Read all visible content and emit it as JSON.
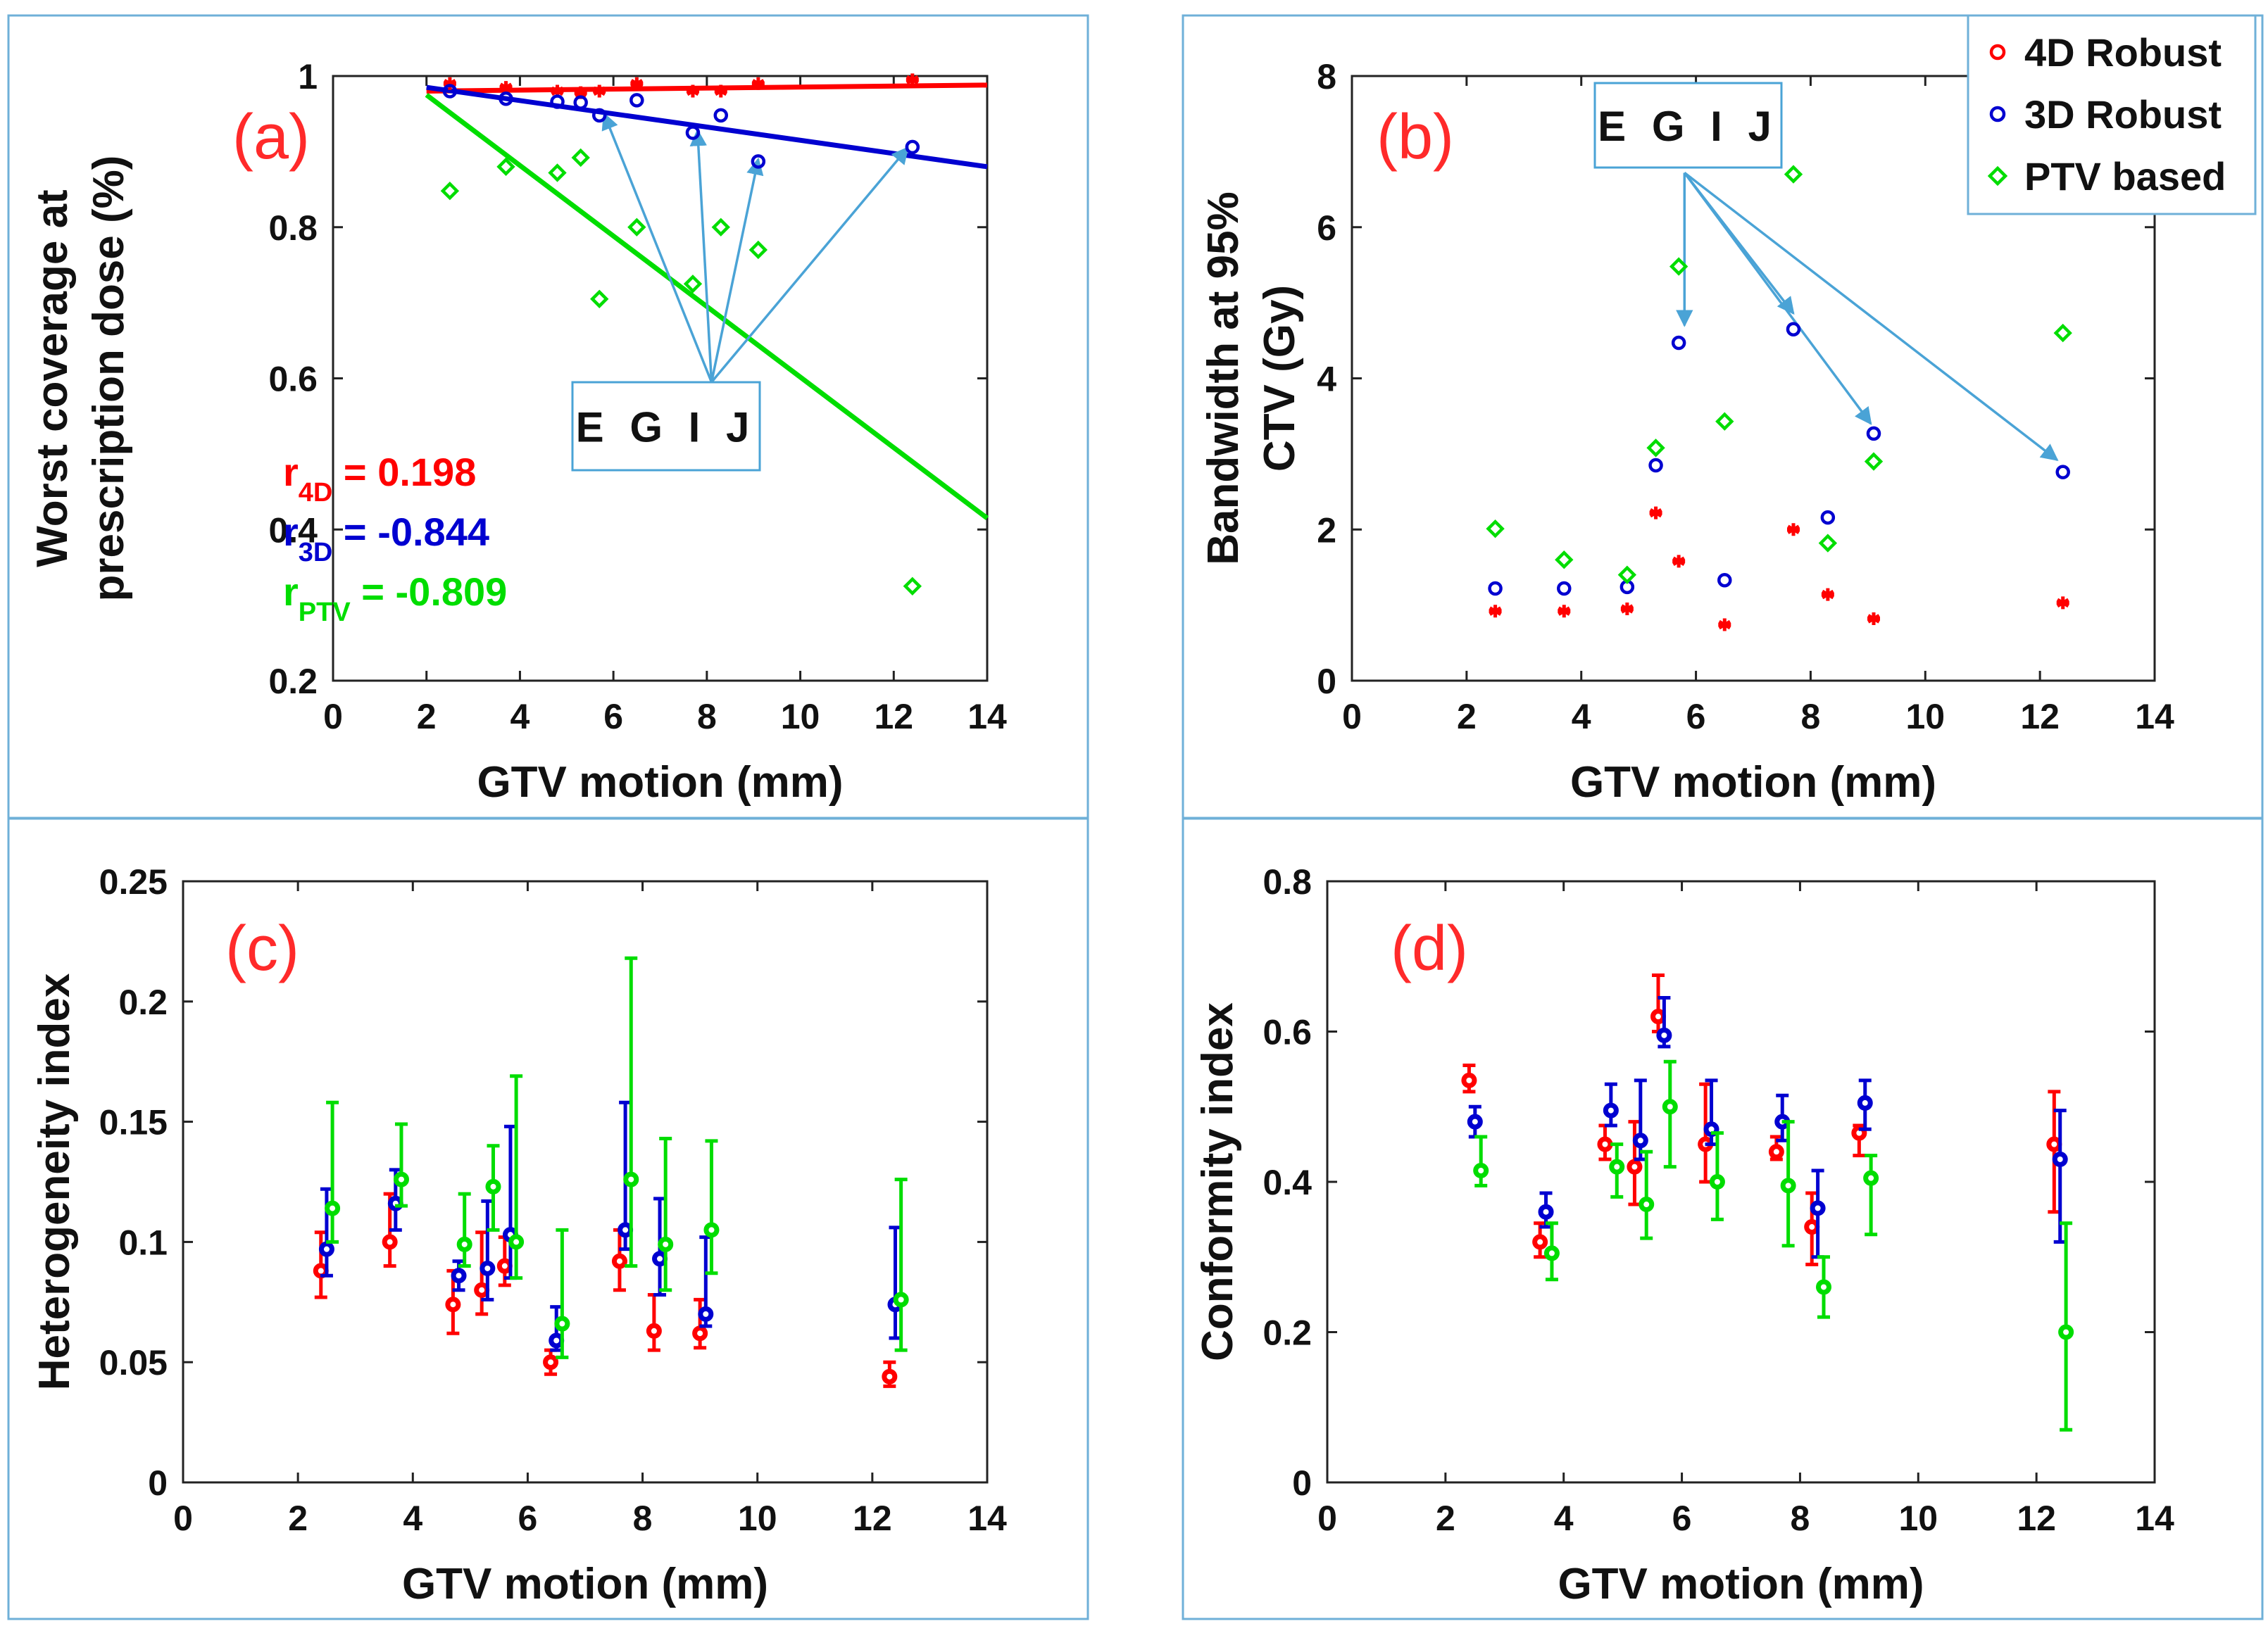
{
  "colors": {
    "4D Robust": "#ff0000",
    "3D Robust": "#0000d0",
    "PTV based": "#00dd00",
    "arrow": "#4aa3d6",
    "panel_border": "#6fb0d8",
    "panel_label": "#ff2a2a"
  },
  "chart_data": [
    {
      "id": "a",
      "panel_label": "(a)",
      "type": "scatter",
      "xlabel": "GTV motion (mm)",
      "ylabel_lines": [
        "Worst coverage at",
        "prescription dose (%)"
      ],
      "xlim": [
        0,
        14
      ],
      "ylim": [
        0.2,
        1
      ],
      "xticks": [
        0,
        2,
        4,
        6,
        8,
        10,
        12,
        14
      ],
      "yticks": [
        0.2,
        0.4,
        0.6,
        0.8,
        1
      ],
      "yticklabels": [
        "0.2",
        "0.4",
        "0.6",
        "0.8",
        "1"
      ],
      "series": [
        {
          "name": "4D Robust",
          "marker": "star",
          "x": [
            2.5,
            3.7,
            4.8,
            5.3,
            5.7,
            6.5,
            7.7,
            8.3,
            9.1,
            12.4
          ],
          "y": [
            0.99,
            0.985,
            0.98,
            0.978,
            0.98,
            0.99,
            0.98,
            0.98,
            0.99,
            0.995
          ]
        },
        {
          "name": "3D Robust",
          "marker": "circle",
          "x": [
            2.5,
            3.7,
            4.8,
            5.3,
            5.7,
            6.5,
            7.7,
            8.3,
            9.1,
            12.4
          ],
          "y": [
            0.98,
            0.97,
            0.966,
            0.965,
            0.948,
            0.968,
            0.925,
            0.948,
            0.887,
            0.906
          ]
        },
        {
          "name": "PTV based",
          "marker": "diamond",
          "x": [
            2.5,
            3.7,
            4.8,
            5.3,
            5.7,
            6.5,
            7.7,
            8.3,
            9.1,
            12.4
          ],
          "y": [
            0.848,
            0.88,
            0.872,
            0.892,
            0.705,
            0.8,
            0.725,
            0.8,
            0.77,
            0.325
          ]
        }
      ],
      "fit_lines": [
        {
          "series": "4D Robust",
          "x": [
            2,
            14
          ],
          "y": [
            0.98,
            0.988
          ]
        },
        {
          "series": "3D Robust",
          "x": [
            2,
            14
          ],
          "y": [
            0.985,
            0.88
          ]
        },
        {
          "series": "PTV based",
          "x": [
            2,
            14
          ],
          "y": [
            0.975,
            0.415
          ]
        }
      ],
      "correlations": [
        {
          "prefix": "r",
          "sub": "4D",
          "value": " = 0.198",
          "series": "4D Robust"
        },
        {
          "prefix": "r",
          "sub": "3D",
          "value": " = -0.844",
          "series": "3D Robust"
        },
        {
          "prefix": "r",
          "sub": "PTV",
          "value": " = -0.809",
          "series": "PTV based"
        }
      ],
      "callout": {
        "text": "E G I  J",
        "origin": [
          8.1,
          0.595
        ],
        "targets": [
          [
            5.8,
            0.95
          ],
          [
            7.8,
            0.928
          ],
          [
            9.1,
            0.89
          ],
          [
            12.3,
            0.905
          ]
        ]
      }
    },
    {
      "id": "b",
      "panel_label": "(b)",
      "type": "scatter",
      "xlabel": "GTV motion (mm)",
      "ylabel_lines": [
        "Bandwidth at 95%",
        "CTV (Gy)"
      ],
      "xlim": [
        0,
        14
      ],
      "ylim": [
        0,
        8
      ],
      "xticks": [
        0,
        2,
        4,
        6,
        8,
        10,
        12,
        14
      ],
      "yticks": [
        0,
        2,
        4,
        6,
        8
      ],
      "yticklabels": [
        "0",
        "2",
        "4",
        "6",
        "8"
      ],
      "series": [
        {
          "name": "4D Robust",
          "marker": "star",
          "x": [
            2.5,
            3.7,
            4.8,
            5.3,
            5.7,
            6.5,
            7.7,
            8.3,
            9.1,
            12.4
          ],
          "y": [
            0.92,
            0.92,
            0.95,
            2.22,
            1.58,
            0.74,
            2.0,
            1.14,
            0.82,
            1.03
          ]
        },
        {
          "name": "3D Robust",
          "marker": "circle",
          "x": [
            2.5,
            3.7,
            4.8,
            5.3,
            5.7,
            6.5,
            7.7,
            8.3,
            9.1,
            12.4
          ],
          "y": [
            1.22,
            1.22,
            1.24,
            2.85,
            4.47,
            1.33,
            4.65,
            2.16,
            3.27,
            2.76
          ]
        },
        {
          "name": "PTV based",
          "marker": "diamond",
          "x": [
            2.5,
            3.7,
            4.8,
            5.3,
            5.7,
            6.5,
            7.7,
            8.3,
            9.1,
            12.4
          ],
          "y": [
            2.01,
            1.6,
            1.4,
            3.08,
            5.48,
            3.43,
            6.7,
            1.82,
            2.9,
            4.6
          ]
        }
      ],
      "callout": {
        "text": "E G I  J",
        "origin": [
          5.8,
          6.72
        ],
        "targets": [
          [
            5.8,
            4.7
          ],
          [
            7.7,
            4.86
          ],
          [
            9.05,
            3.4
          ],
          [
            12.3,
            2.92
          ]
        ]
      },
      "legend": {
        "position": "top-right",
        "entries": [
          "4D Robust",
          "3D Robust",
          "PTV based"
        ]
      }
    },
    {
      "id": "c",
      "panel_label": "(c)",
      "type": "errorbar",
      "xlabel": "GTV motion (mm)",
      "ylabel_lines": [
        "Heterogeneity index"
      ],
      "xlim": [
        0,
        14
      ],
      "ylim": [
        0,
        0.25
      ],
      "xticks": [
        0,
        2,
        4,
        6,
        8,
        10,
        12,
        14
      ],
      "yticks": [
        0,
        0.05,
        0.1,
        0.15,
        0.2,
        0.25
      ],
      "yticklabels": [
        "0",
        "0.05",
        "0.1",
        "0.15",
        "0.2",
        "0.25"
      ],
      "series": [
        {
          "name": "4D Robust",
          "x": [
            2.4,
            3.6,
            4.7,
            5.2,
            5.6,
            6.4,
            7.6,
            8.2,
            9.0,
            12.3
          ],
          "y": [
            0.088,
            0.1,
            0.074,
            0.08,
            0.09,
            0.05,
            0.092,
            0.063,
            0.062,
            0.044
          ],
          "lo": [
            0.077,
            0.09,
            0.062,
            0.07,
            0.082,
            0.045,
            0.08,
            0.055,
            0.056,
            0.04
          ],
          "hi": [
            0.104,
            0.12,
            0.088,
            0.104,
            0.102,
            0.055,
            0.105,
            0.078,
            0.076,
            0.05
          ]
        },
        {
          "name": "3D Robust",
          "x": [
            2.5,
            3.7,
            4.8,
            5.3,
            5.7,
            6.5,
            7.7,
            8.3,
            9.1,
            12.4
          ],
          "y": [
            0.097,
            0.116,
            0.086,
            0.089,
            0.103,
            0.059,
            0.105,
            0.093,
            0.07,
            0.074
          ],
          "lo": [
            0.086,
            0.105,
            0.08,
            0.076,
            0.085,
            0.055,
            0.097,
            0.078,
            0.065,
            0.06
          ],
          "hi": [
            0.122,
            0.13,
            0.092,
            0.117,
            0.148,
            0.073,
            0.158,
            0.118,
            0.102,
            0.106
          ]
        },
        {
          "name": "PTV based",
          "x": [
            2.6,
            3.8,
            4.9,
            5.4,
            5.8,
            6.6,
            7.8,
            8.4,
            9.2,
            12.5
          ],
          "y": [
            0.114,
            0.126,
            0.099,
            0.123,
            0.1,
            0.066,
            0.126,
            0.099,
            0.105,
            0.076
          ],
          "lo": [
            0.1,
            0.115,
            0.09,
            0.105,
            0.085,
            0.052,
            0.09,
            0.08,
            0.087,
            0.055
          ],
          "hi": [
            0.158,
            0.149,
            0.12,
            0.14,
            0.169,
            0.105,
            0.218,
            0.143,
            0.142,
            0.126
          ]
        }
      ]
    },
    {
      "id": "d",
      "panel_label": "(d)",
      "type": "errorbar",
      "xlabel": "GTV motion (mm)",
      "ylabel_lines": [
        "Conformity index"
      ],
      "xlim": [
        0,
        14
      ],
      "ylim": [
        0,
        0.8
      ],
      "xticks": [
        0,
        2,
        4,
        6,
        8,
        10,
        12,
        14
      ],
      "yticks": [
        0,
        0.2,
        0.4,
        0.6,
        0.8
      ],
      "yticklabels": [
        "0",
        "0.2",
        "0.4",
        "0.6",
        "0.8"
      ],
      "series": [
        {
          "name": "4D Robust",
          "x": [
            2.4,
            3.6,
            4.7,
            5.2,
            5.6,
            6.4,
            7.6,
            8.2,
            9.0,
            12.3
          ],
          "y": [
            0.535,
            0.32,
            0.45,
            0.42,
            0.62,
            0.45,
            0.44,
            0.34,
            0.465,
            0.45
          ],
          "lo": [
            0.52,
            0.3,
            0.43,
            0.37,
            0.6,
            0.4,
            0.43,
            0.29,
            0.435,
            0.36
          ],
          "hi": [
            0.555,
            0.345,
            0.475,
            0.48,
            0.675,
            0.53,
            0.46,
            0.385,
            0.475,
            0.52
          ]
        },
        {
          "name": "3D Robust",
          "x": [
            2.5,
            3.7,
            4.8,
            5.3,
            5.7,
            6.5,
            7.7,
            8.3,
            9.1,
            12.4
          ],
          "y": [
            0.48,
            0.36,
            0.495,
            0.455,
            0.595,
            0.47,
            0.48,
            0.365,
            0.505,
            0.43
          ],
          "lo": [
            0.46,
            0.34,
            0.475,
            0.43,
            0.58,
            0.45,
            0.455,
            0.3,
            0.47,
            0.32
          ],
          "hi": [
            0.5,
            0.385,
            0.53,
            0.535,
            0.645,
            0.535,
            0.515,
            0.415,
            0.535,
            0.495
          ]
        },
        {
          "name": "PTV based",
          "x": [
            2.6,
            3.8,
            4.9,
            5.4,
            5.8,
            6.6,
            7.8,
            8.4,
            9.2,
            12.5
          ],
          "y": [
            0.415,
            0.305,
            0.42,
            0.37,
            0.5,
            0.4,
            0.395,
            0.26,
            0.405,
            0.2
          ],
          "lo": [
            0.395,
            0.27,
            0.38,
            0.325,
            0.42,
            0.35,
            0.315,
            0.22,
            0.33,
            0.07
          ],
          "hi": [
            0.46,
            0.345,
            0.45,
            0.44,
            0.56,
            0.465,
            0.48,
            0.3,
            0.435,
            0.345
          ]
        }
      ]
    }
  ]
}
